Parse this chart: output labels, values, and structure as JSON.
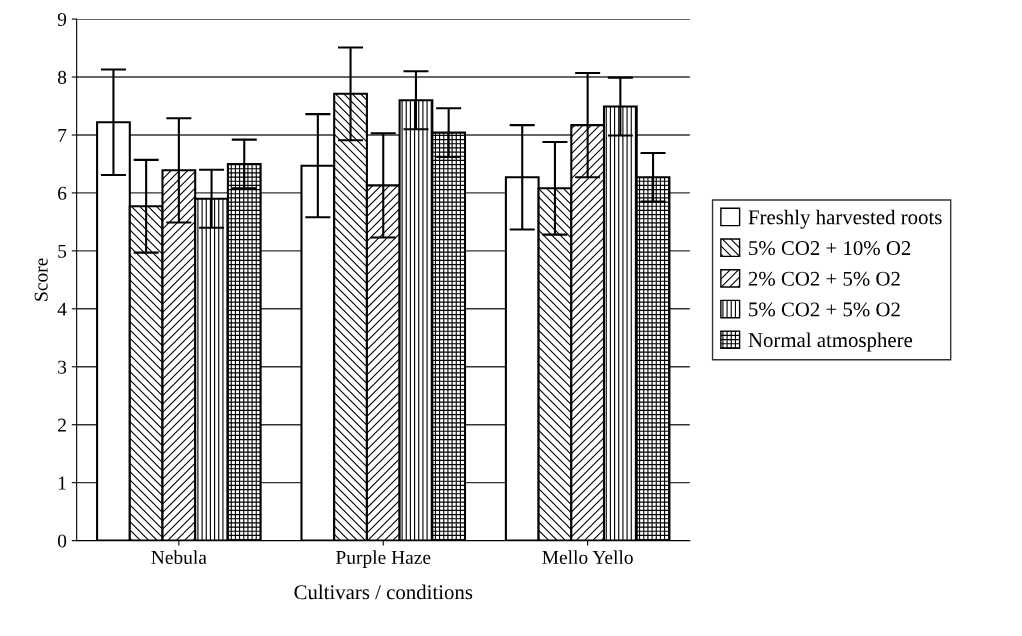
{
  "chart_data": {
    "type": "bar",
    "xlabel": "Cultivars / conditions",
    "ylabel": "Score",
    "categories": [
      "Nebula",
      "Purple Haze",
      "Mello Yello"
    ],
    "series": [
      {
        "name": "Freshly harvested roots",
        "color": "#ffffff",
        "values": [
          7.22,
          6.47,
          6.27
        ],
        "errors": [
          0.91,
          0.89,
          0.9
        ]
      },
      {
        "name": "5% CO2 + 10% O2",
        "color": "#000000",
        "values": [
          5.77,
          7.71,
          6.08
        ],
        "errors": [
          0.8,
          0.8,
          0.8
        ]
      },
      {
        "name": "2% CO2 + 5% O2",
        "color": "#000000",
        "values": [
          6.39,
          6.13,
          7.17
        ],
        "errors": [
          0.9,
          0.9,
          0.9
        ]
      },
      {
        "name": "5% CO2 + 5% O2",
        "color": "#000000",
        "values": [
          5.9,
          7.6,
          7.49
        ],
        "errors": [
          0.5,
          0.5,
          0.5
        ]
      },
      {
        "name": "Normal atmosphere",
        "color": "#000000",
        "values": [
          6.5,
          7.04,
          6.27
        ],
        "errors": [
          0.42,
          0.42,
          0.42
        ]
      }
    ],
    "ylim": [
      0,
      9
    ],
    "yticks": [
      0,
      1,
      2,
      3,
      4,
      5,
      6,
      7,
      8,
      9
    ],
    "grid": "y",
    "legend": "right"
  }
}
